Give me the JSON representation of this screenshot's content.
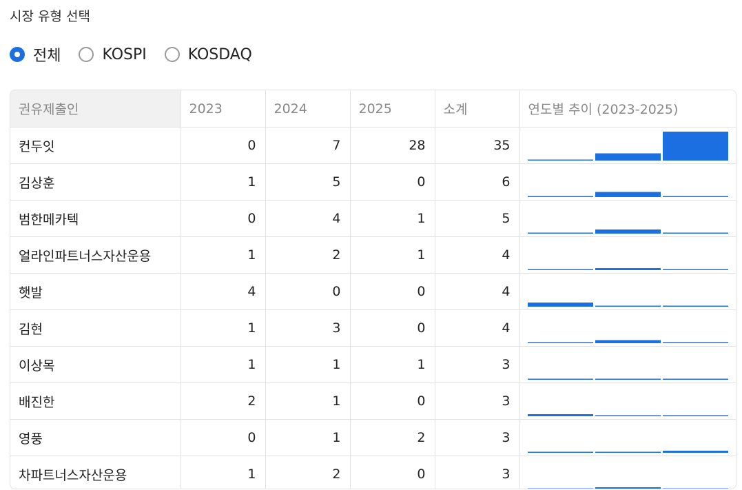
{
  "filter": {
    "label": "시장 유형 선택",
    "options": [
      {
        "label": "전체",
        "checked": true
      },
      {
        "label": "KOSPI",
        "checked": false
      },
      {
        "label": "KOSDAQ",
        "checked": false
      }
    ]
  },
  "table": {
    "headers": [
      "권유제출인",
      "2023",
      "2024",
      "2025",
      "소계",
      "연도별 추이 (2023-2025)"
    ],
    "rows": [
      {
        "name": "컨두잇",
        "y2023": "0",
        "y2024": "7",
        "y2025": "28",
        "total": "35"
      },
      {
        "name": "김상훈",
        "y2023": "1",
        "y2024": "5",
        "y2025": "0",
        "total": "6"
      },
      {
        "name": "범한메카텍",
        "y2023": "0",
        "y2024": "4",
        "y2025": "1",
        "total": "5"
      },
      {
        "name": "얼라인파트너스자산운용",
        "y2023": "1",
        "y2024": "2",
        "y2025": "1",
        "total": "4"
      },
      {
        "name": "햇발",
        "y2023": "4",
        "y2024": "0",
        "y2025": "0",
        "total": "4"
      },
      {
        "name": "김현",
        "y2023": "1",
        "y2024": "3",
        "y2025": "0",
        "total": "4"
      },
      {
        "name": "이상목",
        "y2023": "1",
        "y2024": "1",
        "y2025": "1",
        "total": "3"
      },
      {
        "name": "배진한",
        "y2023": "2",
        "y2024": "1",
        "y2025": "0",
        "total": "3"
      },
      {
        "name": "영풍",
        "y2023": "0",
        "y2024": "1",
        "y2025": "2",
        "total": "3"
      },
      {
        "name": "차파트너스자산운용",
        "y2023": "1",
        "y2024": "2",
        "y2025": "0",
        "total": "3"
      }
    ]
  },
  "colors": {
    "accent": "#1b6fe0",
    "baseline": "#d8d8d8"
  }
}
